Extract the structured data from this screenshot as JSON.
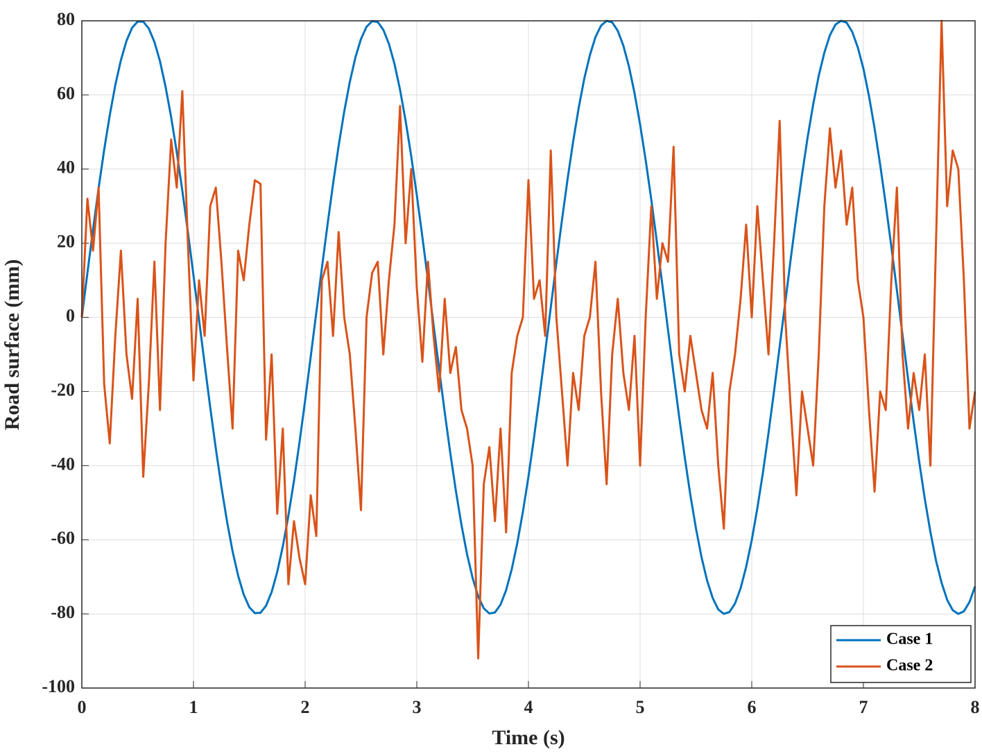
{
  "chart_data": {
    "type": "line",
    "x_label": "Time (s)",
    "y_label": "Road surface (mm)",
    "x": [
      0,
      0.05,
      0.1,
      0.15,
      0.2,
      0.25,
      0.3,
      0.35,
      0.4,
      0.45,
      0.5,
      0.55,
      0.6,
      0.65,
      0.7,
      0.75,
      0.8,
      0.85,
      0.9,
      0.95,
      1,
      1.05,
      1.1,
      1.15,
      1.2,
      1.25,
      1.3,
      1.35,
      1.4,
      1.45,
      1.5,
      1.55,
      1.6,
      1.65,
      1.7,
      1.75,
      1.8,
      1.85,
      1.9,
      1.95,
      2,
      2.05,
      2.1,
      2.15,
      2.2,
      2.25,
      2.3,
      2.35,
      2.4,
      2.45,
      2.5,
      2.55,
      2.6,
      2.65,
      2.7,
      2.75,
      2.8,
      2.85,
      2.9,
      2.95,
      3,
      3.05,
      3.1,
      3.15,
      3.2,
      3.25,
      3.3,
      3.35,
      3.4,
      3.45,
      3.5,
      3.55,
      3.6,
      3.65,
      3.7,
      3.75,
      3.8,
      3.85,
      3.9,
      3.95,
      4,
      4.05,
      4.1,
      4.15,
      4.2,
      4.25,
      4.3,
      4.35,
      4.4,
      4.45,
      4.5,
      4.55,
      4.6,
      4.65,
      4.7,
      4.75,
      4.8,
      4.85,
      4.9,
      4.95,
      5,
      5.05,
      5.1,
      5.15,
      5.2,
      5.25,
      5.3,
      5.35,
      5.4,
      5.45,
      5.5,
      5.55,
      5.6,
      5.65,
      5.7,
      5.75,
      5.8,
      5.85,
      5.9,
      5.95,
      6,
      6.05,
      6.1,
      6.15,
      6.2,
      6.25,
      6.3,
      6.35,
      6.4,
      6.45,
      6.5,
      6.55,
      6.6,
      6.65,
      6.7,
      6.75,
      6.8,
      6.85,
      6.9,
      6.95,
      7,
      7.05,
      7.1,
      7.15,
      7.2,
      7.25,
      7.3,
      7.35,
      7.4,
      7.45,
      7.5,
      7.55,
      7.6,
      7.65,
      7.7,
      7.75,
      7.8,
      7.85,
      7.9,
      7.95,
      8
    ],
    "series": [
      {
        "name": "Case 1",
        "color": "#0072bd",
        "values": [
          0,
          12.0,
          23.6,
          34.8,
          45.2,
          54.5,
          62.7,
          69.4,
          74.6,
          78.1,
          79.8,
          79.8,
          77.9,
          74.3,
          69.1,
          62.2,
          54.0,
          44.6,
          34.2,
          23.0,
          11.3,
          -0.7,
          -12.6,
          -24.3,
          -35.4,
          -45.7,
          -55.0,
          -63.1,
          -69.7,
          -74.8,
          -78.2,
          -79.8,
          -79.7,
          -77.8,
          -74.1,
          -68.7,
          -61.8,
          -53.5,
          -44.1,
          -33.6,
          -22.4,
          -10.6,
          1.3,
          13.3,
          24.9,
          36.0,
          46.3,
          55.5,
          63.5,
          70.1,
          75.1,
          78.4,
          79.9,
          79.7,
          77.6,
          73.8,
          68.4,
          61.4,
          53.0,
          43.5,
          33.0,
          21.7,
          10.0,
          -2.0,
          -13.9,
          -25.6,
          -36.6,
          -46.8,
          -56.0,
          -63.9,
          -70.3,
          -75.3,
          -78.5,
          -79.9,
          -79.6,
          -77.5,
          -73.6,
          -68.0,
          -60.9,
          -52.5,
          -43.0,
          -32.4,
          -21.1,
          -9.3,
          2.7,
          14.7,
          26.2,
          37.2,
          47.4,
          56.5,
          64.4,
          70.7,
          75.6,
          78.7,
          80.0,
          79.6,
          77.3,
          73.3,
          67.7,
          60.5,
          52.0,
          42.4,
          31.8,
          20.4,
          8.6,
          -3.4,
          -15.3,
          -26.9,
          -37.8,
          -47.9,
          -56.9,
          -64.7,
          -71.0,
          -75.7,
          -78.8,
          -80.0,
          -79.5,
          -77.2,
          -73.1,
          -67.3,
          -60.1,
          -51.5,
          -41.9,
          -31.2,
          -19.8,
          -7.9,
          4.0,
          16.0,
          27.5,
          38.4,
          48.5,
          57.4,
          65.2,
          71.4,
          76.1,
          79.0,
          80.0,
          79.5,
          77.0,
          72.8,
          67.1,
          59.7,
          51.0,
          41.2,
          30.5,
          19.1,
          7.3,
          -4.7,
          -16.6,
          -28.1,
          -39.0,
          -49.0,
          -57.9,
          -65.6,
          -71.6,
          -76.2,
          -79.0,
          -80.0,
          -79.3,
          -76.8,
          -72.6
        ]
      },
      {
        "name": "Case 2",
        "color": "#d95319",
        "values": [
          0,
          32,
          18,
          35,
          -18,
          -34,
          -5,
          18,
          -10,
          -22,
          5,
          -43,
          -18,
          15,
          -25,
          20,
          48,
          35,
          61,
          20,
          -17,
          10,
          -5,
          30,
          35,
          15,
          -8,
          -30,
          18,
          10,
          25,
          37,
          36,
          -33,
          -10,
          -53,
          -30,
          -72,
          -55,
          -65,
          -72,
          -48,
          -59,
          10,
          15,
          -5,
          23,
          0,
          -10,
          -30,
          -52,
          0,
          12,
          15,
          -10,
          10,
          25,
          57,
          20,
          40,
          8,
          -12,
          15,
          -5,
          -20,
          5,
          -15,
          -8,
          -25,
          -30,
          -40,
          -92,
          -45,
          -35,
          -55,
          -30,
          -58,
          -15,
          -5,
          0,
          37,
          5,
          10,
          -5,
          45,
          0,
          -20,
          -40,
          -15,
          -25,
          -5,
          0,
          15,
          -20,
          -45,
          -10,
          5,
          -15,
          -25,
          -5,
          -40,
          0,
          30,
          5,
          20,
          15,
          46,
          -10,
          -20,
          -5,
          -15,
          -25,
          -30,
          -15,
          -40,
          -57,
          -20,
          -10,
          5,
          25,
          0,
          30,
          10,
          -10,
          20,
          53,
          0,
          -25,
          -48,
          -20,
          -30,
          -40,
          -10,
          30,
          51,
          35,
          45,
          25,
          35,
          10,
          0,
          -25,
          -47,
          -20,
          -25,
          10,
          35,
          -10,
          -30,
          -15,
          -25,
          -10,
          -40,
          20,
          80,
          30,
          45,
          40,
          10,
          -30,
          -20
        ]
      }
    ],
    "xlim": [
      0,
      8
    ],
    "xticks": [
      0,
      1,
      2,
      3,
      4,
      5,
      6,
      7,
      8
    ],
    "ylim": [
      -100,
      80
    ],
    "yticks": [
      -100,
      -80,
      -60,
      -40,
      -20,
      0,
      20,
      40,
      60,
      80
    ],
    "grid": true,
    "legend": "lower right"
  }
}
